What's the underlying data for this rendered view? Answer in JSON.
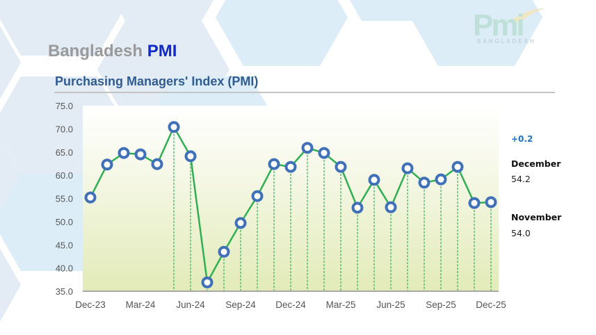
{
  "header": {
    "brand_prefix": "Bangladesh",
    "brand_suffix": "PMI",
    "subtitle": "Purchasing Managers' Index (PMI)"
  },
  "logo": {
    "mark": "Pmi",
    "tagline": "BANGLADESH"
  },
  "summary": {
    "change": "+0.2",
    "current_month": "December",
    "current_value": "54.2",
    "previous_month": "November",
    "previous_value": "54.0"
  },
  "colors": {
    "line": "#2eb052",
    "marker": "#3f70b8",
    "brand_blue": "#1029c8",
    "subtitle_blue": "#2f5b93",
    "delta_blue": "#1f73c8"
  },
  "chart_data": {
    "type": "line",
    "title": "Purchasing Managers' Index (PMI)",
    "xlabel": "",
    "ylabel": "",
    "ylim": [
      35.0,
      75.0
    ],
    "yticks": [
      "35.0",
      "40.0",
      "45.0",
      "50.0",
      "55.0",
      "60.0",
      "65.0",
      "70.0",
      "75.0"
    ],
    "xtick_labels": [
      "Dec-23",
      "Mar-24",
      "Jun-24",
      "Sep-24",
      "Dec-24",
      "Mar-25",
      "Jun-25",
      "Sep-25",
      "Dec-25"
    ],
    "grid": false,
    "legend": "none",
    "categories": [
      "Dec-23",
      "Jan-24",
      "Feb-24",
      "Mar-24",
      "Apr-24",
      "May-24",
      "Jun-24",
      "Jul-24",
      "Aug-24",
      "Sep-24",
      "Oct-24",
      "Nov-24",
      "Dec-24",
      "Jan-25",
      "Feb-25",
      "Mar-25",
      "Apr-25",
      "May-25",
      "Jun-25",
      "Jul-25",
      "Aug-25",
      "Sep-25",
      "Oct-25",
      "Nov-25",
      "Dec-25"
    ],
    "series": [
      {
        "name": "PMI",
        "values": [
          55.2,
          62.3,
          64.8,
          64.5,
          62.4,
          70.4,
          64.1,
          36.9,
          43.5,
          49.7,
          55.5,
          62.4,
          61.8,
          65.9,
          64.8,
          61.8,
          53.0,
          59.0,
          53.1,
          61.5,
          58.4,
          59.1,
          61.8,
          54.0,
          54.2
        ]
      }
    ],
    "drop_lines_from_index": 5
  }
}
